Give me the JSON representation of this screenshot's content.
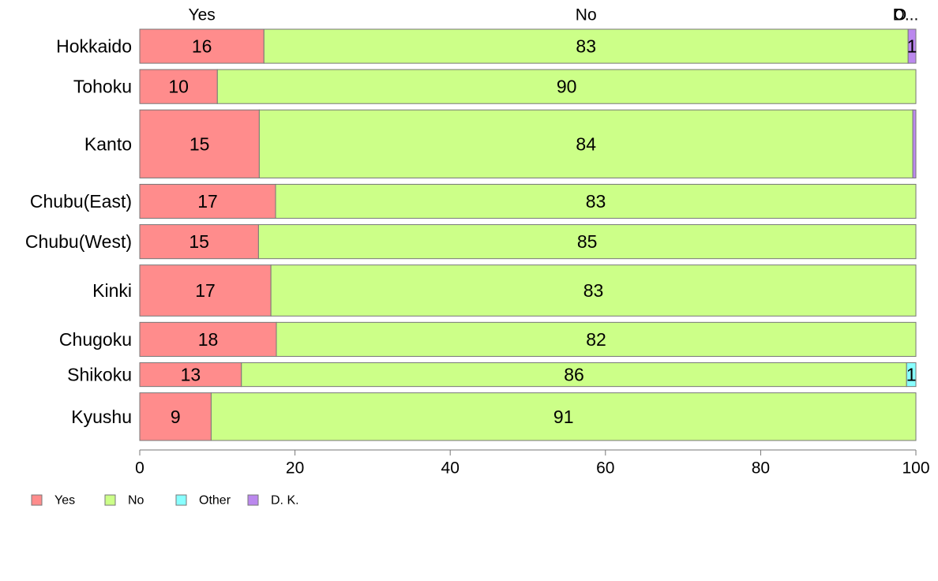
{
  "chart_data": {
    "type": "bar",
    "orientation": "horizontal",
    "stacked": true,
    "title": "",
    "xlabel": "",
    "ylabel": "",
    "xlim": [
      0,
      100
    ],
    "x_ticks": [
      "0",
      "20",
      "40",
      "60",
      "80",
      "100"
    ],
    "grid": false,
    "legend_position": "bottom-left",
    "categories": [
      "Hokkaido",
      "Tohoku",
      "Kanto",
      "Chubu(East)",
      "Chubu(West)",
      "Kinki",
      "Chugoku",
      "Shikoku",
      "Kyushu"
    ],
    "series": [
      {
        "name": "Yes",
        "color": "#FF8C8C",
        "values": [
          16,
          10,
          15.4,
          17.5,
          15.3,
          16.9,
          17.6,
          13.1,
          9.2
        ]
      },
      {
        "name": "No",
        "color": "#CCFF88",
        "values": [
          83,
          90,
          84.2,
          82.5,
          84.7,
          83.1,
          82.4,
          85.7,
          90.8
        ]
      },
      {
        "name": "Other",
        "color": "#88FFFF",
        "values": [
          0,
          0,
          0,
          0,
          0,
          0,
          0,
          1.2,
          0
        ]
      },
      {
        "name": "D. K.",
        "color": "#BB88EE",
        "values": [
          1,
          0,
          0.4,
          0,
          0,
          0,
          0,
          0,
          0
        ]
      }
    ],
    "data_labels": [
      [
        "16",
        "83",
        "",
        "1"
      ],
      [
        "10",
        "90",
        "",
        ""
      ],
      [
        "15",
        "84",
        "",
        ""
      ],
      [
        "17",
        "83",
        "",
        ""
      ],
      [
        "15",
        "85",
        "",
        ""
      ],
      [
        "17",
        "83",
        "",
        ""
      ],
      [
        "18",
        "82",
        "",
        ""
      ],
      [
        "13",
        "86",
        "1",
        ""
      ],
      [
        "9",
        "91",
        "",
        ""
      ]
    ],
    "row_weights": [
      1,
      1,
      2,
      1,
      1,
      1.5,
      1,
      0.7,
      1.4
    ],
    "top_labels": [
      "Yes",
      "No",
      "O",
      "D..."
    ]
  }
}
